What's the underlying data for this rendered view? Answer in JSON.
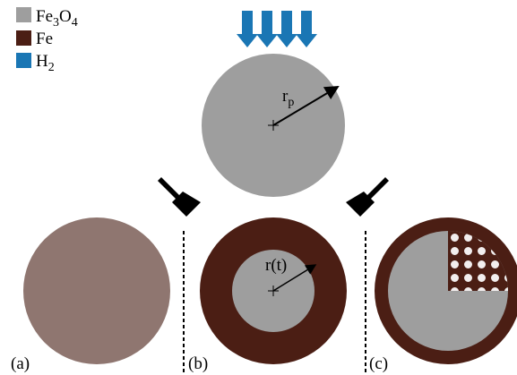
{
  "legend": [
    {
      "label_parts": [
        "Fe",
        "3",
        "O",
        "4"
      ]
    },
    {
      "label_parts": [
        "Fe"
      ]
    },
    {
      "label_parts": [
        "H",
        "2"
      ]
    }
  ],
  "radius_label_parts": [
    "r",
    "p"
  ],
  "inner_radius_label": "r(t)",
  "panels": [
    "(a)",
    "(b)",
    "(c)"
  ]
}
